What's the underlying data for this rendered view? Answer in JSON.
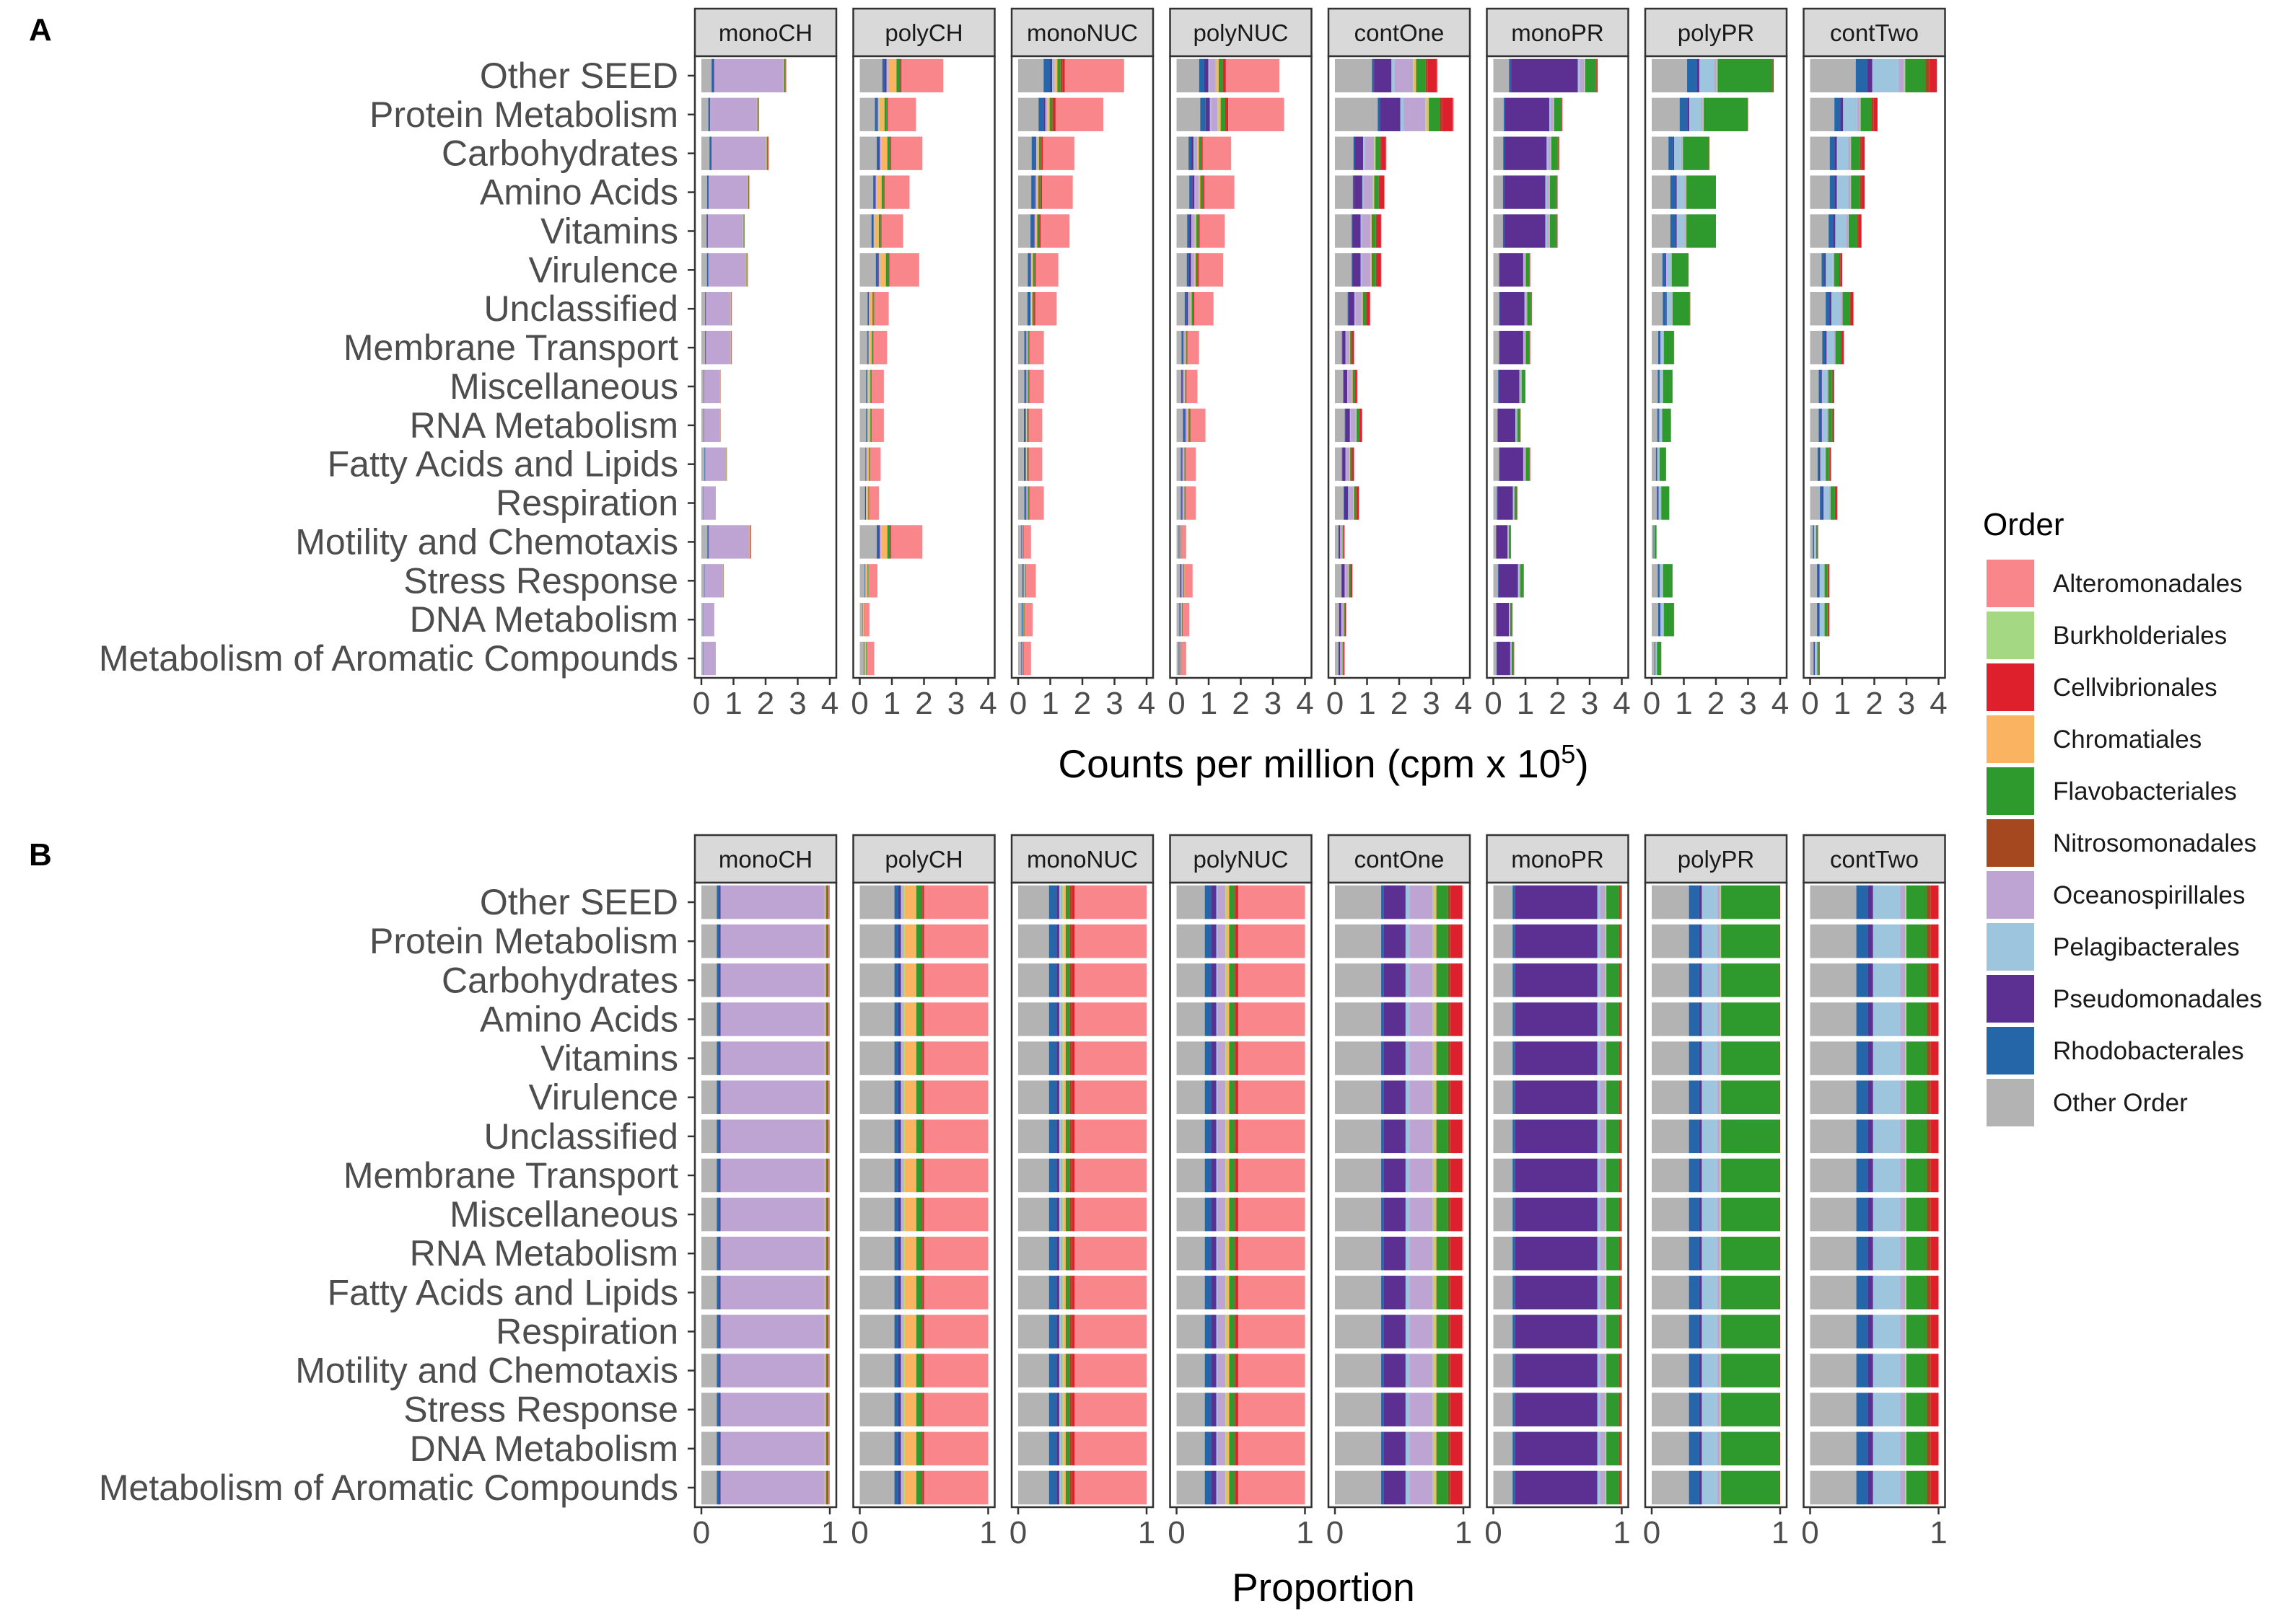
{
  "chart_data": [
    {
      "panel_label": "A",
      "type": "bar",
      "orientation": "horizontal",
      "stacked": true,
      "facets": [
        "monoCH",
        "polyCH",
        "monoNUC",
        "polyNUC",
        "contOne",
        "monoPR",
        "polyPR",
        "contTwo"
      ],
      "categories": [
        "Other SEED",
        "Protein Metabolism",
        "Carbohydrates",
        "Amino Acids",
        "Vitamins",
        "Virulence",
        "Unclassified",
        "Membrane Transport",
        "Miscellaneous",
        "RNA Metabolism",
        "Fatty Acids and Lipids",
        "Respiration",
        "Motility and Chemotaxis",
        "Stress Response",
        "DNA Metabolism",
        "Metabolism of Aromatic Compounds"
      ],
      "totals": {
        "monoCH": [
          2.65,
          1.8,
          2.1,
          1.5,
          1.35,
          1.45,
          0.95,
          0.95,
          0.6,
          0.6,
          0.8,
          0.45,
          1.55,
          0.7,
          0.4,
          0.45
        ],
        "polyCH": [
          2.6,
          1.75,
          1.95,
          1.55,
          1.35,
          1.85,
          0.9,
          0.85,
          0.75,
          0.75,
          0.65,
          0.6,
          1.95,
          0.55,
          0.3,
          0.45
        ],
        "monoNUC": [
          3.3,
          2.65,
          1.75,
          1.7,
          1.6,
          1.25,
          1.2,
          0.8,
          0.8,
          0.75,
          0.75,
          0.8,
          0.4,
          0.55,
          0.45,
          0.4
        ],
        "polyNUC": [
          3.2,
          3.35,
          1.7,
          1.8,
          1.5,
          1.45,
          1.15,
          0.7,
          0.65,
          0.9,
          0.6,
          0.6,
          0.3,
          0.5,
          0.4,
          0.3
        ],
        "contOne": [
          3.2,
          3.7,
          1.6,
          1.55,
          1.45,
          1.45,
          1.1,
          0.6,
          0.7,
          0.85,
          0.6,
          0.75,
          0.3,
          0.55,
          0.35,
          0.3
        ],
        "monoPR": [
          3.25,
          2.15,
          2.05,
          2.0,
          2.0,
          1.15,
          1.2,
          1.15,
          1.0,
          0.85,
          1.15,
          0.75,
          0.55,
          0.95,
          0.6,
          0.65
        ],
        "polyPR": [
          3.8,
          3.0,
          1.8,
          2.0,
          2.0,
          1.15,
          1.2,
          0.7,
          0.65,
          0.6,
          0.45,
          0.55,
          0.15,
          0.65,
          0.7,
          0.3
        ],
        "contTwo": [
          3.95,
          2.1,
          1.7,
          1.7,
          1.6,
          1.0,
          1.35,
          1.05,
          0.75,
          0.75,
          0.65,
          0.85,
          0.25,
          0.6,
          0.6,
          0.3
        ]
      },
      "xlabel_main": "Counts per million (cpm x 10",
      "xlabel_sup": "5",
      "xlabel_close": ")",
      "xlim": [
        0,
        4
      ],
      "x_ticks": [
        "0",
        "1",
        "2",
        "3",
        "4"
      ]
    },
    {
      "panel_label": "B",
      "type": "bar",
      "orientation": "horizontal",
      "stacked": true,
      "proportional": true,
      "facets": [
        "monoCH",
        "polyCH",
        "monoNUC",
        "polyNUC",
        "contOne",
        "monoPR",
        "polyPR",
        "contTwo"
      ],
      "categories": [
        "Other SEED",
        "Protein Metabolism",
        "Carbohydrates",
        "Amino Acids",
        "Vitamins",
        "Virulence",
        "Unclassified",
        "Membrane Transport",
        "Miscellaneous",
        "RNA Metabolism",
        "Fatty Acids and Lipids",
        "Respiration",
        "Motility and Chemotaxis",
        "Stress Response",
        "DNA Metabolism",
        "Metabolism of Aromatic Compounds"
      ],
      "composition_order": [
        "Other Order",
        "Rhodobacterales",
        "Pseudomonadales",
        "Pelagibacterales",
        "Oceanospirillales",
        "Burkholderiales",
        "Chromatiales",
        "Flavobacteriales",
        "Nitrosomonadales",
        "Cellvibrionales",
        "Alteromonadales"
      ],
      "composition": {
        "monoCH": [
          0.12,
          0.02,
          0.01,
          0.0,
          0.81,
          0.0,
          0.01,
          0.01,
          0.01,
          0.0,
          0.01
        ],
        "polyCH": [
          0.27,
          0.03,
          0.02,
          0.01,
          0.01,
          0.01,
          0.09,
          0.04,
          0.01,
          0.01,
          0.5
        ],
        "monoNUC": [
          0.24,
          0.06,
          0.02,
          0.01,
          0.01,
          0.01,
          0.02,
          0.03,
          0.02,
          0.02,
          0.56
        ],
        "polyNUC": [
          0.22,
          0.05,
          0.04,
          0.01,
          0.06,
          0.01,
          0.02,
          0.04,
          0.01,
          0.02,
          0.52
        ],
        "contOne": [
          0.36,
          0.02,
          0.17,
          0.03,
          0.18,
          0.01,
          0.02,
          0.09,
          0.02,
          0.09,
          0.01
        ],
        "monoPR": [
          0.15,
          0.02,
          0.64,
          0.02,
          0.04,
          0.01,
          0.0,
          0.1,
          0.01,
          0.01,
          0.0
        ],
        "polyPR": [
          0.29,
          0.08,
          0.02,
          0.12,
          0.02,
          0.01,
          0.0,
          0.45,
          0.01,
          0.0,
          0.0
        ],
        "contTwo": [
          0.36,
          0.09,
          0.04,
          0.21,
          0.04,
          0.01,
          0.0,
          0.16,
          0.03,
          0.06,
          0.0
        ]
      },
      "xlabel": "Proportion",
      "xlim": [
        0,
        1
      ],
      "x_ticks": [
        "0",
        "1"
      ]
    }
  ],
  "legend": {
    "title": "Order",
    "entries": [
      {
        "label": "Alteromonadales",
        "color": "#F8868A"
      },
      {
        "label": "Burkholderiales",
        "color": "#A4D883"
      },
      {
        "label": "Cellvibrionales",
        "color": "#DE1F2C"
      },
      {
        "label": "Chromatiales",
        "color": "#FAB461"
      },
      {
        "label": "Flavobacteriales",
        "color": "#2E9A2E"
      },
      {
        "label": "Nitrosomonadales",
        "color": "#A5471F"
      },
      {
        "label": "Oceanospirillales",
        "color": "#BEA4D3"
      },
      {
        "label": "Pelagibacterales",
        "color": "#9DC6DE"
      },
      {
        "label": "Pseudomonadales",
        "color": "#5C2F92"
      },
      {
        "label": "Rhodobacterales",
        "color": "#2466A8"
      },
      {
        "label": "Other Order",
        "color": "#B3B3B3"
      }
    ]
  }
}
